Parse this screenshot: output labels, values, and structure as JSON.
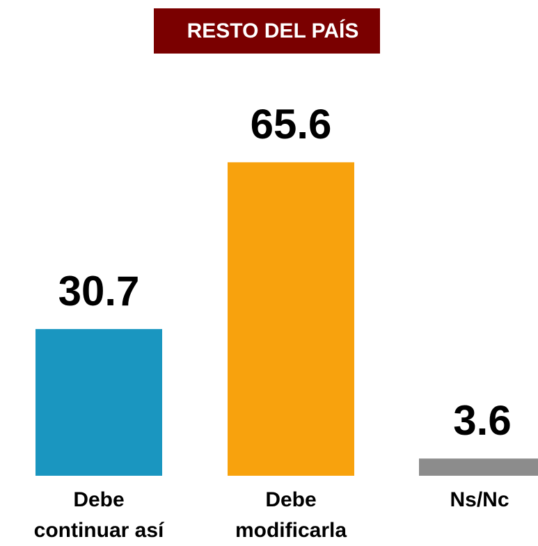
{
  "chart_data": {
    "type": "bar",
    "title": "RESTO DEL PAÍS",
    "categories": [
      "Debe continuar así",
      "Debe modificarla",
      "Ns/Nc"
    ],
    "values": [
      30.7,
      65.6,
      3.6
    ],
    "colors": [
      "#1a96c0",
      "#f8a20d",
      "#8c8c8c"
    ]
  }
}
